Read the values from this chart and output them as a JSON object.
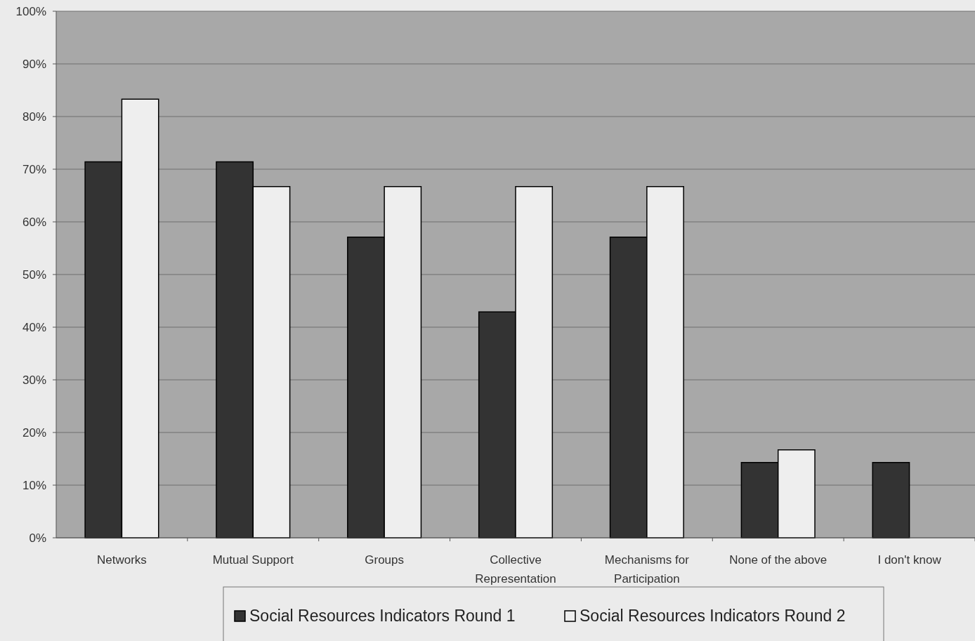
{
  "chart_data": {
    "type": "bar",
    "categories": [
      "Networks",
      "Mutual Support",
      "Groups",
      "Collective Representation",
      "Mechanisms for Participation",
      "None of the above",
      "I don't know"
    ],
    "series": [
      {
        "name": "Social Resources Indicators Round 1",
        "color": "#333333",
        "values": [
          71.4,
          71.4,
          57.1,
          42.9,
          57.1,
          14.3,
          14.3
        ]
      },
      {
        "name": "Social Resources Indicators Round 2",
        "color": "#eeeeee",
        "values": [
          83.3,
          66.7,
          66.7,
          66.7,
          66.7,
          16.7,
          null
        ]
      }
    ],
    "ylim": [
      0,
      100
    ],
    "yticks": [
      {
        "value": 0,
        "label": "0%"
      },
      {
        "value": 10,
        "label": "10%"
      },
      {
        "value": 20,
        "label": "20%"
      },
      {
        "value": 30,
        "label": "30%"
      },
      {
        "value": 40,
        "label": "40%"
      },
      {
        "value": 50,
        "label": "50%"
      },
      {
        "value": 60,
        "label": "60%"
      },
      {
        "value": 70,
        "label": "70%"
      },
      {
        "value": 80,
        "label": "80%"
      },
      {
        "value": 90,
        "label": "90%"
      },
      {
        "value": 100,
        "label": "100%"
      }
    ],
    "grid": "y",
    "legend": "bottom"
  }
}
